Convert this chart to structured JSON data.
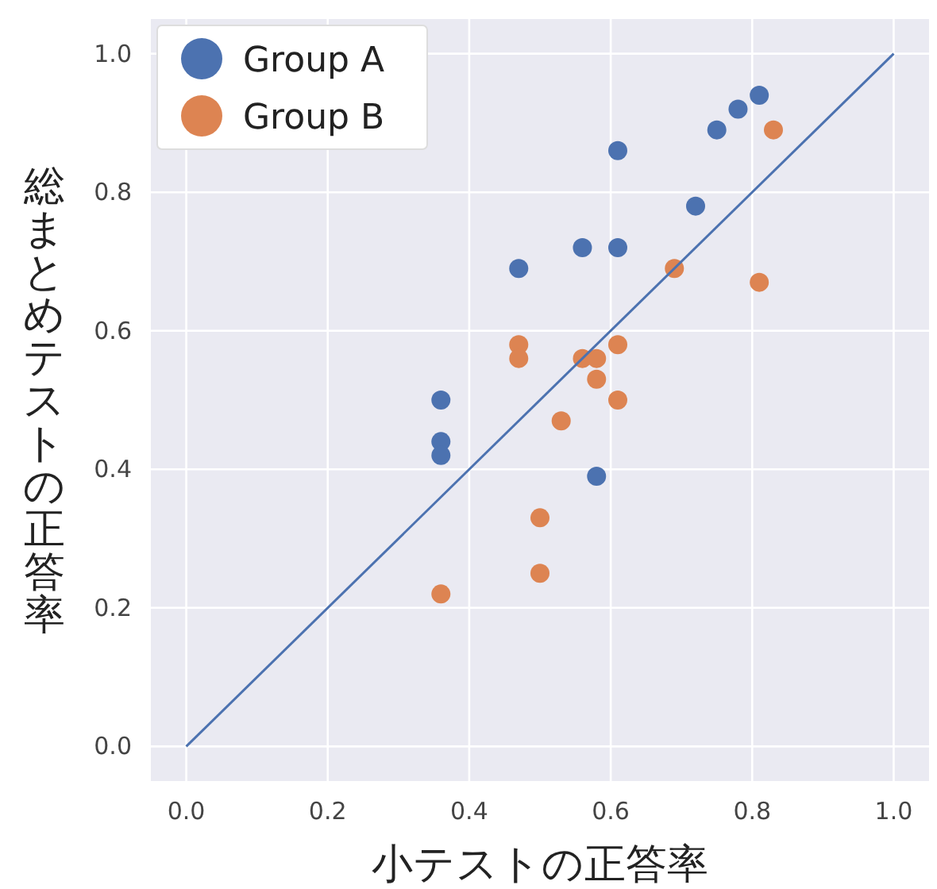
{
  "chart_data": {
    "type": "scatter",
    "xlabel": "小テストの正答率",
    "ylabel": "総まとめテストの正答率",
    "xlim": [
      -0.05,
      1.05
    ],
    "ylim": [
      -0.05,
      1.05
    ],
    "xticks": [
      {
        "value": 0,
        "label": "0.0"
      },
      {
        "value": 0.2,
        "label": "0.2"
      },
      {
        "value": 0.4,
        "label": "0.4"
      },
      {
        "value": 0.6,
        "label": "0.6"
      },
      {
        "value": 0.8,
        "label": "0.8"
      },
      {
        "value": 1,
        "label": "1.0"
      }
    ],
    "yticks": [
      {
        "value": 0,
        "label": "0.0"
      },
      {
        "value": 0.2,
        "label": "0.2"
      },
      {
        "value": 0.4,
        "label": "0.4"
      },
      {
        "value": 0.6,
        "label": "0.6"
      },
      {
        "value": 0.8,
        "label": "0.8"
      },
      {
        "value": 1,
        "label": "1.0"
      }
    ],
    "grid": true,
    "legend": "top left",
    "marker": "circle",
    "series": [
      {
        "name": "Group A",
        "color": "#4c72b0",
        "x": [
          0.36,
          0.36,
          0.36,
          0.47,
          0.56,
          0.61,
          0.61,
          0.58,
          0.72,
          0.75,
          0.78,
          0.81
        ],
        "values": [
          0.5,
          0.44,
          0.42,
          0.69,
          0.72,
          0.72,
          0.86,
          0.39,
          0.78,
          0.89,
          0.92,
          0.94
        ]
      },
      {
        "name": "Group B",
        "color": "#dd8452",
        "x": [
          0.36,
          0.5,
          0.5,
          0.47,
          0.47,
          0.53,
          0.56,
          0.58,
          0.58,
          0.61,
          0.61,
          0.69,
          0.81,
          0.83
        ],
        "values": [
          0.22,
          0.33,
          0.25,
          0.58,
          0.56,
          0.47,
          0.56,
          0.56,
          0.53,
          0.58,
          0.5,
          0.69,
          0.67,
          0.89
        ]
      },
      {
        "type": "line",
        "color": "#4c72b0",
        "marker": "none",
        "x": [
          0,
          1
        ],
        "values": [
          0,
          1
        ]
      }
    ]
  }
}
